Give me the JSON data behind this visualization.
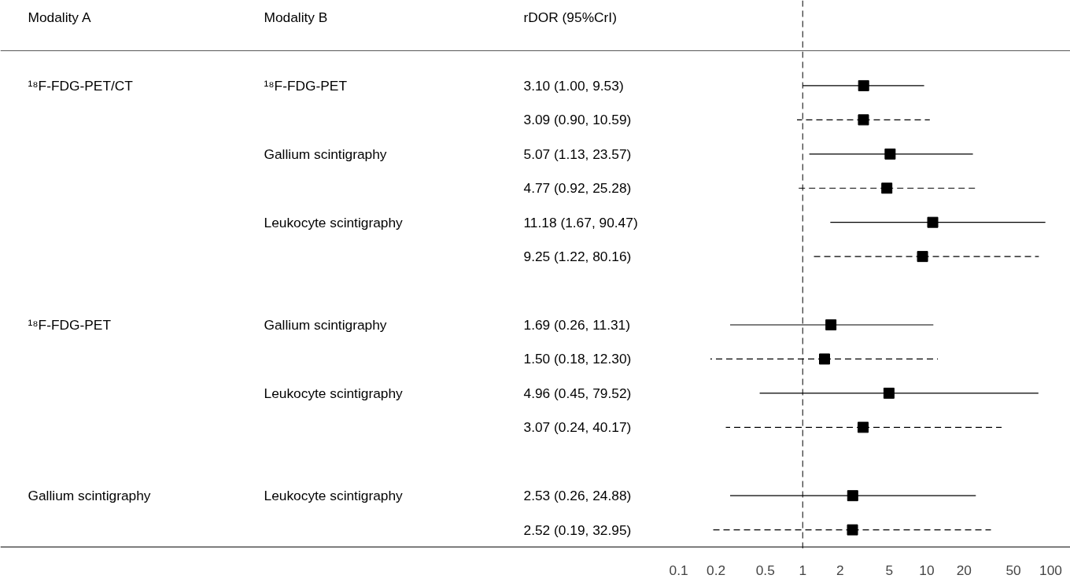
{
  "chart_data": {
    "type": "scatter",
    "orientation": "horizontal",
    "categories": [
      "3.10 (1.00, 9.53)",
      "3.09 (0.90, 10.59)",
      "5.07 (1.13, 23.57)",
      "4.77 (0.92, 25.28)",
      "11.18 (1.67, 90.47)",
      "9.25 (1.22, 80.16)",
      null,
      "1.69 (0.26, 11.31)",
      "1.50 (0.18, 12.30)",
      "4.96 (0.45, 79.52)",
      "3.07 (0.24, 40.17)",
      null,
      "2.53 (0.26, 24.88)",
      "2.52 (0.19, 32.95)"
    ],
    "series": [
      {
        "color": "#000000",
        "line_style": "solid",
        "values": [
          3.1,
          null,
          5.07,
          null,
          11.18,
          null,
          null,
          1.69,
          null,
          4.96,
          null,
          null,
          2.53,
          null
        ],
        "errors": [
          [
            1.0,
            9.53
          ],
          null,
          [
            1.13,
            23.57
          ],
          null,
          [
            1.67,
            90.47
          ],
          null,
          null,
          [
            0.26,
            11.31
          ],
          null,
          [
            0.45,
            79.52
          ],
          null,
          null,
          [
            0.26,
            24.88
          ],
          null
        ]
      },
      {
        "color": "#000000",
        "line_style": "dashed",
        "values": [
          null,
          3.09,
          null,
          4.77,
          null,
          9.25,
          null,
          null,
          1.5,
          null,
          3.07,
          null,
          null,
          2.52
        ],
        "errors": [
          null,
          [
            0.9,
            10.59
          ],
          null,
          [
            0.92,
            25.28
          ],
          null,
          [
            1.22,
            80.16
          ],
          null,
          null,
          [
            0.18,
            12.3
          ],
          null,
          [
            0.24,
            40.17
          ],
          null,
          null,
          [
            0.19,
            32.95
          ]
        ]
      }
    ],
    "annotations": [
      "Modality A",
      "Modality B",
      "rDOR (95%CrI)",
      "¹⁸F-FDG-PET/CT",
      "¹⁸F-FDG-PET",
      "Gallium scintigraphy",
      "Leukocyte scintigraphy",
      "¹⁸F-FDG-PET",
      "Gallium scintigraphy",
      "Leukocyte scintigraphy",
      "Gallium scintigraphy",
      "Leukocyte scintigraphy"
    ],
    "ref_lines": [
      {
        "axis": "x",
        "value": 1,
        "line_style": "dashed",
        "color": "#000000"
      }
    ],
    "xlim": [
      3.4e-07,
      144
    ],
    "xticks": [
      0.1,
      0.2,
      0.5,
      1,
      2,
      5,
      10,
      20,
      50,
      100
    ],
    "log": "x",
    "grid": false,
    "tick_labels": "x",
    "marker": "square"
  }
}
